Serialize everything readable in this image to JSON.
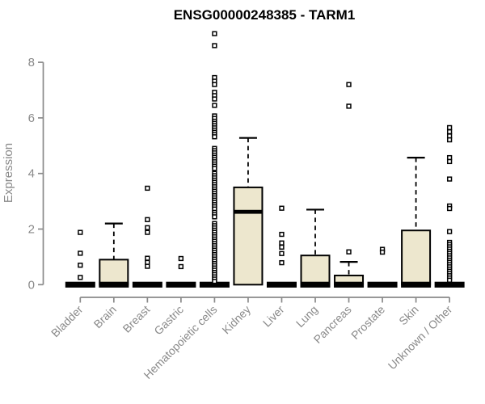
{
  "chart_data": {
    "type": "boxplot",
    "title": "ENSG00000248385 - TARM1",
    "ylabel": "Expression",
    "xlabel": "",
    "ylim": [
      0,
      9.2
    ],
    "yticks": [
      0,
      2,
      4,
      6,
      8
    ],
    "grid": false,
    "legend": "none",
    "categories": [
      "Bladder",
      "Brain",
      "Breast",
      "Gastric",
      "Hematopoietic cells",
      "Kidney",
      "Liver",
      "Lung",
      "Pancreas",
      "Prostate",
      "Skin",
      "Unknown / Other"
    ],
    "groups": [
      {
        "category": "Bladder",
        "q1": 0,
        "median": 0,
        "q3": 0,
        "whisker_low": 0,
        "whisker_high": 0,
        "outliers": [
          1.88,
          1.13,
          0.7,
          0.26
        ]
      },
      {
        "category": "Brain",
        "q1": 0,
        "median": 0,
        "q3": 0.9,
        "whisker_low": 0,
        "whisker_high": 2.2,
        "outliers": []
      },
      {
        "category": "Breast",
        "q1": 0,
        "median": 0,
        "q3": 0,
        "whisker_low": 0,
        "whisker_high": 0,
        "outliers": [
          3.47,
          2.34,
          2.05,
          1.88,
          0.95,
          0.8,
          0.66
        ]
      },
      {
        "category": "Gastric",
        "q1": 0,
        "median": 0,
        "q3": 0,
        "whisker_low": 0,
        "whisker_high": 0,
        "outliers": [
          0.94,
          0.65
        ]
      },
      {
        "category": "Hematopoietic cells",
        "q1": 0,
        "median": 0,
        "q3": 0,
        "whisker_low": 0,
        "whisker_high": 0,
        "outliers": [
          9.03,
          8.6,
          7.45,
          7.32,
          7.2,
          6.92,
          6.8,
          6.68,
          6.45,
          6.07,
          5.98,
          5.88,
          5.8,
          5.72,
          5.64,
          5.56,
          5.48,
          5.4,
          5.32,
          4.9,
          4.82,
          4.74,
          4.66,
          4.58,
          4.5,
          4.42,
          4.34,
          4.26,
          4.18,
          4.0,
          3.92,
          3.84,
          3.76,
          3.68,
          3.6,
          3.52,
          3.44,
          3.36,
          3.28,
          3.2,
          3.12,
          3.04,
          2.96,
          2.88,
          2.8,
          2.72,
          2.6,
          2.52,
          2.44,
          2.2,
          2.12,
          2.04,
          1.96,
          1.88,
          1.8,
          1.72,
          1.64,
          1.56,
          1.48,
          1.4,
          1.32,
          1.24,
          1.16,
          1.08,
          1.0,
          0.92,
          0.84,
          0.76,
          0.68,
          0.6,
          0.52,
          0.44,
          0.36,
          0.28,
          0.2,
          0.12
        ]
      },
      {
        "category": "Kidney",
        "q1": 0,
        "median": 2.62,
        "q3": 3.5,
        "whisker_low": 0,
        "whisker_high": 5.28,
        "outliers": []
      },
      {
        "category": "Liver",
        "q1": 0,
        "median": 0,
        "q3": 0,
        "whisker_low": 0,
        "whisker_high": 0,
        "outliers": [
          2.75,
          1.81,
          1.5,
          1.35,
          1.12,
          0.79
        ]
      },
      {
        "category": "Lung",
        "q1": 0,
        "median": 0,
        "q3": 1.05,
        "whisker_low": 0,
        "whisker_high": 2.7,
        "outliers": []
      },
      {
        "category": "Pancreas",
        "q1": 0,
        "median": 0,
        "q3": 0.33,
        "whisker_low": 0,
        "whisker_high": 0.82,
        "outliers": [
          7.2,
          6.42,
          1.18
        ]
      },
      {
        "category": "Prostate",
        "q1": 0,
        "median": 0,
        "q3": 0,
        "whisker_low": 0,
        "whisker_high": 0,
        "outliers": [
          1.27,
          1.17
        ]
      },
      {
        "category": "Skin",
        "q1": 0,
        "median": 0,
        "q3": 1.95,
        "whisker_low": 0,
        "whisker_high": 4.57,
        "outliers": []
      },
      {
        "category": "Unknown / Other",
        "q1": 0,
        "median": 0,
        "q3": 0,
        "whisker_low": 0,
        "whisker_high": 0,
        "outliers": [
          5.65,
          5.5,
          5.35,
          5.21,
          4.57,
          4.43,
          3.8,
          2.83,
          2.74,
          1.91,
          1.52,
          1.44,
          1.36,
          1.28,
          1.2,
          1.12,
          1.04,
          0.96,
          0.88,
          0.8,
          0.72,
          0.64,
          0.56,
          0.48,
          0.4,
          0.32,
          0.24,
          0.16
        ]
      }
    ],
    "colors": {
      "box_fill": "#ede7ce",
      "box_border": "#000000",
      "median": "#000000",
      "axis": "#8a8a8a",
      "outlier_stroke": "#000000",
      "outlier_fill": "#ffffff",
      "title": "#000000",
      "background": "#ffffff"
    }
  }
}
